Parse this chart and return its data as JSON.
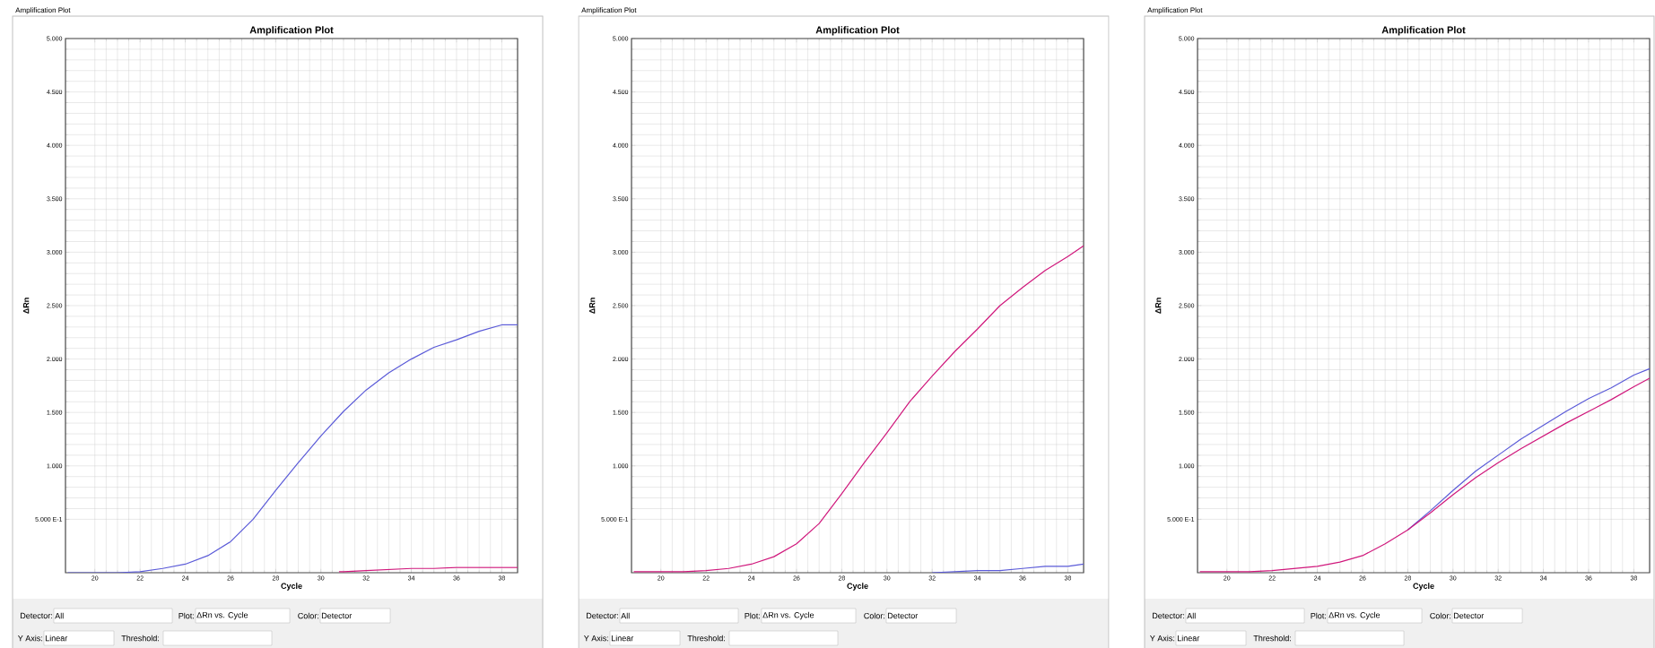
{
  "chart_data": [
    {
      "type": "line",
      "title": "Amplification Plot",
      "subtitle": "Amplification Plot",
      "xlabel": "Cycle",
      "ylabel": "ΔRn",
      "xlim": [
        18.7,
        38.7
      ],
      "ylim": [
        0,
        5
      ],
      "xticks": [
        20,
        22,
        24,
        26,
        28,
        30,
        32,
        34,
        36,
        38
      ],
      "yticks": [
        {
          "value": 0.5,
          "label": "5.000 E-1"
        },
        {
          "value": 1,
          "label": "1.000"
        },
        {
          "value": 1.5,
          "label": "1.500"
        },
        {
          "value": 2,
          "label": "2.000"
        },
        {
          "value": 2.5,
          "label": "2.500"
        },
        {
          "value": 3,
          "label": "3.000"
        },
        {
          "value": 3.5,
          "label": "3.500"
        },
        {
          "value": 4,
          "label": "4.000"
        },
        {
          "value": 4.5,
          "label": "4.500"
        },
        {
          "value": 5,
          "label": "5.000"
        }
      ],
      "grid": true,
      "marker": "none",
      "line_style": "solid",
      "series": [
        {
          "color": "#5b5bd8",
          "x": [
            18.8,
            19,
            20,
            21,
            22,
            23,
            24,
            25,
            26,
            27,
            28,
            29,
            30,
            31,
            32,
            33,
            34,
            35,
            36,
            37,
            38,
            38.7
          ],
          "values": [
            0,
            0,
            0,
            0,
            0.01,
            0.04,
            0.08,
            0.16,
            0.29,
            0.5,
            0.77,
            1.03,
            1.28,
            1.51,
            1.71,
            1.87,
            2.0,
            2.11,
            2.18,
            2.26,
            2.32,
            2.32
          ]
        },
        {
          "color": "#d0187c",
          "x": [
            30.8,
            31,
            32,
            33,
            34,
            35,
            36,
            37,
            38,
            38.7
          ],
          "values": [
            0.01,
            0.01,
            0.02,
            0.03,
            0.04,
            0.04,
            0.05,
            0.05,
            0.05,
            0.05
          ]
        }
      ],
      "annotations": [
        "Detector:",
        "All",
        "Plot:",
        "ΔRn vs. Cycle",
        "Color:",
        "Detector",
        "Y Axis:",
        "Linear",
        "Threshold:"
      ]
    },
    {
      "type": "line",
      "title": "Amplification Plot",
      "subtitle": "Amplification Plot",
      "xlabel": "Cycle",
      "ylabel": "ΔRn",
      "xlim": [
        18.7,
        38.7
      ],
      "ylim": [
        0,
        5
      ],
      "xticks": [
        20,
        22,
        24,
        26,
        28,
        30,
        32,
        34,
        36,
        38
      ],
      "yticks": [
        {
          "value": 0.5,
          "label": "5.000 E-1"
        },
        {
          "value": 1,
          "label": "1.000"
        },
        {
          "value": 1.5,
          "label": "1.500"
        },
        {
          "value": 2,
          "label": "2.000"
        },
        {
          "value": 2.5,
          "label": "2.500"
        },
        {
          "value": 3,
          "label": "3.000"
        },
        {
          "value": 3.5,
          "label": "3.500"
        },
        {
          "value": 4,
          "label": "4.000"
        },
        {
          "value": 4.5,
          "label": "4.500"
        },
        {
          "value": 5,
          "label": "5.000"
        }
      ],
      "grid": true,
      "marker": "none",
      "line_style": "solid",
      "series": [
        {
          "color": "#5b5bd8",
          "x": [
            32,
            33,
            34,
            35,
            36,
            37,
            38,
            38.7
          ],
          "values": [
            0,
            0.01,
            0.02,
            0.02,
            0.04,
            0.06,
            0.06,
            0.08
          ]
        },
        {
          "color": "#d0187c",
          "x": [
            18.8,
            19,
            20,
            21,
            22,
            23,
            24,
            25,
            26,
            27,
            28,
            29,
            30,
            31,
            32,
            33,
            34,
            35,
            36,
            37,
            38,
            38.7
          ],
          "values": [
            0.01,
            0.01,
            0.01,
            0.01,
            0.02,
            0.04,
            0.08,
            0.15,
            0.27,
            0.46,
            0.74,
            1.03,
            1.31,
            1.6,
            1.84,
            2.07,
            2.28,
            2.5,
            2.67,
            2.83,
            2.96,
            3.06
          ]
        }
      ],
      "annotations": [
        "Detector:",
        "All",
        "Plot:",
        "ΔRn vs. Cycle",
        "Color:",
        "Detector",
        "Y Axis:",
        "Linear",
        "Threshold:"
      ]
    },
    {
      "type": "line",
      "title": "Amplification Plot",
      "subtitle": "Amplification Plot",
      "xlabel": "Cycle",
      "ylabel": "ΔRn",
      "xlim": [
        18.7,
        38.7
      ],
      "ylim": [
        0,
        5
      ],
      "xticks": [
        20,
        22,
        24,
        26,
        28,
        30,
        32,
        34,
        36,
        38
      ],
      "yticks": [
        {
          "value": 0.5,
          "label": "5.000 E-1"
        },
        {
          "value": 1,
          "label": "1.000"
        },
        {
          "value": 1.5,
          "label": "1.500"
        },
        {
          "value": 2,
          "label": "2.000"
        },
        {
          "value": 2.5,
          "label": "2.500"
        },
        {
          "value": 3,
          "label": "3.000"
        },
        {
          "value": 3.5,
          "label": "3.500"
        },
        {
          "value": 4,
          "label": "4.000"
        },
        {
          "value": 4.5,
          "label": "4.500"
        },
        {
          "value": 5,
          "label": "5.000"
        }
      ],
      "grid": true,
      "marker": "none",
      "line_style": "solid",
      "series": [
        {
          "color": "#5b5bd8",
          "x": [
            28,
            29,
            30,
            31,
            32,
            33,
            34,
            35,
            36,
            37,
            38,
            38.7
          ],
          "values": [
            0.4,
            0.58,
            0.77,
            0.95,
            1.1,
            1.25,
            1.38,
            1.51,
            1.63,
            1.73,
            1.85,
            1.91
          ]
        },
        {
          "color": "#d0187c",
          "x": [
            18.8,
            19,
            20,
            21,
            22,
            23,
            24,
            25,
            26,
            27,
            28,
            29,
            30,
            31,
            32,
            33,
            34,
            35,
            36,
            37,
            38,
            38.7
          ],
          "values": [
            0.01,
            0.01,
            0.01,
            0.01,
            0.02,
            0.04,
            0.06,
            0.1,
            0.16,
            0.27,
            0.4,
            0.56,
            0.73,
            0.89,
            1.03,
            1.16,
            1.28,
            1.4,
            1.51,
            1.62,
            1.74,
            1.82
          ]
        }
      ],
      "annotations": [
        "Detector:",
        "All",
        "Plot:",
        "ΔRn vs. Cycle",
        "Color:",
        "Detector",
        "Y Axis:",
        "Linear",
        "Threshold:"
      ]
    }
  ]
}
